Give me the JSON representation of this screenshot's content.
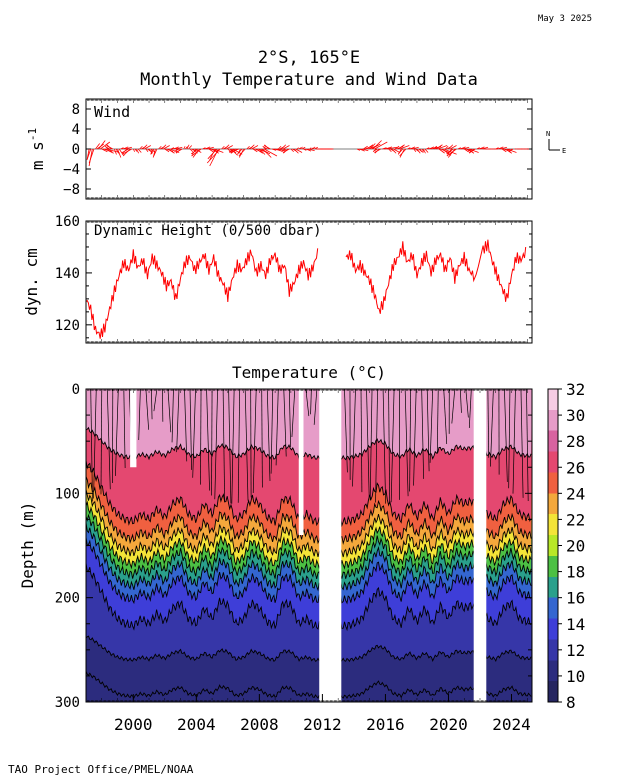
{
  "header": {
    "date": "May  3 2025",
    "title_line1": "2°S, 165°E",
    "title_line2": "Monthly Temperature and Wind Data"
  },
  "footer": {
    "credit": "TAO Project Office/PMEL/NOAA"
  },
  "colors": {
    "wind": "#ff0000",
    "dynamic_height": "#ff0000",
    "contour": "#000000",
    "gap": "#ffffff"
  },
  "chart_data": [
    {
      "type": "line",
      "panel": "wind",
      "label": "Wind",
      "ylabel": "m s",
      "ylabel_sup": "-1",
      "ylim": [
        -10,
        10
      ],
      "yticks": [
        -8,
        -4,
        0,
        4,
        8
      ],
      "ytick_labels": [
        "−8",
        "−4",
        "0",
        "4",
        "8"
      ],
      "xlim": [
        1997.0,
        2025.3
      ],
      "compass": {
        "north": "N",
        "east": "E"
      },
      "gaps": [
        [
          2012.6,
          2013.9
        ]
      ],
      "x": [
        1997.2,
        1997.6,
        1998.0,
        1998.4,
        1998.8,
        1999.2,
        1999.6,
        2000.0,
        2000.4,
        2000.8,
        2001.2,
        2001.6,
        2002.0,
        2002.4,
        2002.8,
        2003.2,
        2003.6,
        2004.0,
        2004.4,
        2004.8,
        2005.2,
        2005.6,
        2006.0,
        2006.4,
        2006.8,
        2007.2,
        2007.6,
        2008.0,
        2008.4,
        2008.8,
        2009.2,
        2009.6,
        2010.0,
        2010.4,
        2010.8,
        2011.2,
        2011.6,
        2012.0,
        2012.4,
        2014.2,
        2014.6,
        2015.0,
        2015.4,
        2015.8,
        2016.2,
        2016.6,
        2017.0,
        2017.4,
        2017.8,
        2018.2,
        2018.6,
        2019.0,
        2019.4,
        2019.8,
        2020.2,
        2020.6,
        2021.0,
        2021.4,
        2021.8,
        2022.2,
        2022.6,
        2023.0,
        2023.4,
        2023.8,
        2024.2,
        2024.6
      ],
      "u": [
        -1.5,
        3,
        4,
        -2,
        1.5,
        2,
        -3,
        1,
        2,
        1.5,
        -1,
        2,
        3,
        2,
        -2,
        1,
        2,
        -3,
        2,
        3,
        -4,
        2,
        3,
        -3,
        -2,
        2,
        3,
        4,
        -2,
        3,
        2,
        -2,
        2,
        1,
        2,
        1,
        2,
        1,
        -1,
        2,
        3,
        4,
        -2,
        3,
        2,
        3,
        -2,
        2,
        1.5,
        1,
        2,
        3,
        4,
        2,
        -3,
        2,
        3,
        -2,
        2,
        1,
        1,
        2,
        3,
        -1,
        1,
        1
      ],
      "v": [
        -4,
        2,
        -1,
        1,
        -2,
        0.5,
        -1.5,
        -1,
        1,
        -1,
        -2,
        1,
        -1,
        0.5,
        -1,
        1,
        -1,
        -2,
        0.5,
        -1,
        -4,
        1,
        -1.5,
        -1,
        -2,
        1,
        -1,
        -2,
        1,
        -0.5,
        1,
        -1,
        -1,
        0.5,
        -0.5,
        0.5,
        0,
        0,
        0,
        -0.5,
        1,
        2,
        -1,
        0.5,
        -1,
        1,
        -2,
        0.5,
        -1,
        -1,
        0.5,
        1,
        -1.5,
        1,
        -2,
        0.5,
        -1,
        -1,
        0.5,
        0,
        0,
        0.5,
        -1,
        -0.5,
        0,
        0
      ]
    },
    {
      "type": "line",
      "panel": "dynamic_height",
      "label": "Dynamic Height (0/500 dbar)",
      "ylabel": "dyn. cm",
      "ylim": [
        113,
        160
      ],
      "yticks": [
        120,
        140,
        160
      ],
      "xlim": [
        1997.0,
        2025.3
      ],
      "gaps": [
        [
          2011.8,
          2013.5
        ]
      ],
      "x": [
        1997.0,
        1997.3,
        1997.6,
        1997.9,
        1998.2,
        1998.5,
        1998.8,
        1999.1,
        1999.4,
        1999.7,
        2000.0,
        2000.3,
        2000.6,
        2000.9,
        2001.2,
        2001.5,
        2001.8,
        2002.1,
        2002.4,
        2002.7,
        2003.0,
        2003.3,
        2003.6,
        2003.9,
        2004.2,
        2004.5,
        2004.8,
        2005.1,
        2005.4,
        2005.7,
        2006.0,
        2006.3,
        2006.6,
        2006.9,
        2007.2,
        2007.5,
        2007.8,
        2008.1,
        2008.4,
        2008.7,
        2009.0,
        2009.3,
        2009.6,
        2009.9,
        2010.2,
        2010.5,
        2010.8,
        2011.1,
        2011.4,
        2011.7,
        2013.5,
        2013.8,
        2014.1,
        2014.4,
        2014.7,
        2015.0,
        2015.3,
        2015.6,
        2015.9,
        2016.2,
        2016.5,
        2016.8,
        2017.1,
        2017.4,
        2017.7,
        2018.0,
        2018.3,
        2018.6,
        2018.9,
        2019.2,
        2019.5,
        2019.8,
        2020.1,
        2020.4,
        2020.7,
        2021.0,
        2021.3,
        2021.6,
        2022.2,
        2022.5,
        2022.8,
        2023.1,
        2023.4,
        2023.7,
        2024.0,
        2024.3,
        2024.6,
        2024.9
      ],
      "y": [
        130,
        126,
        118,
        116,
        119,
        126,
        133,
        139,
        144,
        141,
        147,
        142,
        145,
        139,
        146,
        143,
        140,
        135,
        137,
        130,
        138,
        144,
        146,
        141,
        144,
        147,
        141,
        146,
        139,
        136,
        131,
        138,
        143,
        141,
        145,
        148,
        140,
        143,
        139,
        145,
        147,
        141,
        143,
        133,
        136,
        141,
        144,
        139,
        142,
        148,
        146,
        147,
        141,
        143,
        140,
        137,
        132,
        125,
        129,
        136,
        143,
        146,
        150,
        144,
        147,
        139,
        144,
        147,
        140,
        145,
        147,
        141,
        146,
        138,
        143,
        146,
        141,
        139,
        149,
        151,
        144,
        139,
        134,
        130,
        139,
        146,
        145,
        148
      ]
    },
    {
      "type": "heatmap",
      "panel": "temperature",
      "title": "Temperature (°C)",
      "ylabel": "Depth (m)",
      "ylim": [
        300,
        0
      ],
      "yticks": [
        0,
        100,
        200,
        300
      ],
      "xlim": [
        1997.0,
        2025.3
      ],
      "xticks": [
        2000,
        2004,
        2008,
        2012,
        2016,
        2020,
        2024
      ],
      "gaps": [
        [
          2011.8,
          2013.2
        ],
        [
          2021.6,
          2022.4
        ]
      ],
      "small_gaps": [
        [
          1999.8,
          2000.2,
          0,
          75
        ],
        [
          2010.5,
          2010.8,
          0,
          140
        ]
      ],
      "colorbar": {
        "ticks": [
          8,
          10,
          12,
          14,
          16,
          18,
          20,
          22,
          24,
          26,
          28,
          30,
          32
        ],
        "colors": [
          "#262660",
          "#2c2c7e",
          "#3636a8",
          "#3e3ed8",
          "#3466d0",
          "#2aa08c",
          "#4cc044",
          "#b8e828",
          "#f4e438",
          "#f4a83c",
          "#f06040",
          "#e44870",
          "#d863a0",
          "#e69cc8",
          "#f6cce4"
        ]
      },
      "isotherm_depths": [
        {
          "temp": 30,
          "mean_depth": 60
        },
        {
          "temp": 28,
          "mean_depth": 115
        },
        {
          "temp": 26,
          "mean_depth": 132
        },
        {
          "temp": 24,
          "mean_depth": 145
        },
        {
          "temp": 22,
          "mean_depth": 156
        },
        {
          "temp": 20,
          "mean_depth": 166
        },
        {
          "temp": 18,
          "mean_depth": 177
        },
        {
          "temp": 16,
          "mean_depth": 190
        },
        {
          "temp": 14,
          "mean_depth": 215
        },
        {
          "temp": 12,
          "mean_depth": 255
        },
        {
          "temp": 10,
          "mean_depth": 290
        }
      ],
      "thermocline_x": [
        1997.0,
        1997.5,
        1998.0,
        1998.5,
        1999.0,
        1999.5,
        2000.0,
        2000.5,
        2001.0,
        2001.5,
        2002.0,
        2002.5,
        2003.0,
        2003.5,
        2004.0,
        2004.5,
        2005.0,
        2005.5,
        2006.0,
        2006.5,
        2007.0,
        2007.5,
        2008.0,
        2008.5,
        2009.0,
        2009.5,
        2010.0,
        2010.5,
        2011.0,
        2011.5,
        2013.5,
        2014.0,
        2014.5,
        2015.0,
        2015.5,
        2016.0,
        2016.5,
        2017.0,
        2017.5,
        2018.0,
        2018.5,
        2019.0,
        2019.5,
        2020.0,
        2020.5,
        2021.0,
        2021.5,
        2022.5,
        2023.0,
        2023.5,
        2024.0,
        2024.5,
        2025.0
      ],
      "thermocline_offset": [
        -45,
        -35,
        -20,
        -5,
        5,
        10,
        12,
        5,
        10,
        0,
        8,
        -5,
        -10,
        5,
        10,
        -5,
        5,
        -12,
        -8,
        10,
        5,
        -10,
        -5,
        8,
        12,
        -10,
        -8,
        10,
        5,
        12,
        12,
        10,
        5,
        -10,
        -22,
        -15,
        5,
        10,
        -5,
        8,
        -5,
        10,
        -8,
        5,
        -10,
        -5,
        -8,
        5,
        10,
        -5,
        -10,
        5,
        8
      ]
    }
  ]
}
